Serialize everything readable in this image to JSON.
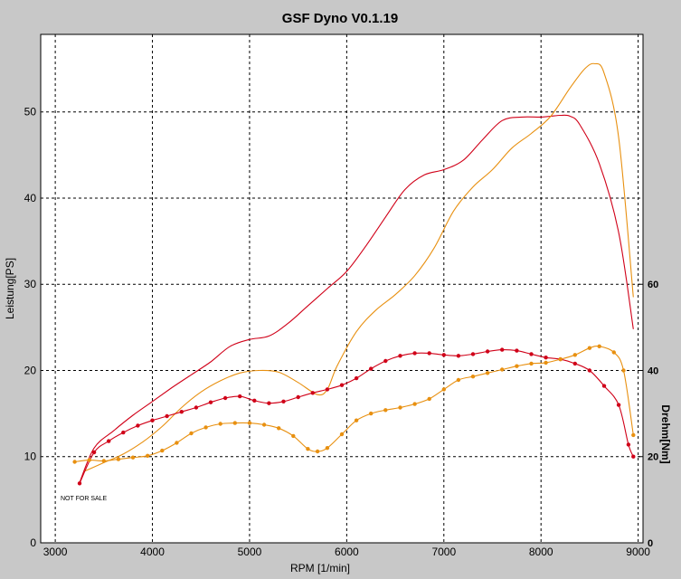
{
  "chart_data": {
    "type": "line",
    "title": "GSF Dyno V0.1.19",
    "xlabel": "RPM [1/min]",
    "ylabel": "Leistung[PS]",
    "y2label": "Drehm[Nm]",
    "xlim": [
      2850,
      9050
    ],
    "ylim": [
      0,
      59
    ],
    "y2lim": [
      0,
      118
    ],
    "x_ticks": [
      "3000",
      "4000",
      "5000",
      "6000",
      "7000",
      "8000",
      "9000"
    ],
    "y_ticks": [
      "0",
      "10",
      "20",
      "30",
      "40",
      "50"
    ],
    "y2_ticks": [
      "0",
      "20",
      "40",
      "60"
    ],
    "grid": true,
    "annotation": "NOT FOR SALE",
    "colors": {
      "red": "#d00018",
      "orange": "#e89010",
      "plot_bg": "#ffffff",
      "window_bg": "#c8c8c8"
    },
    "series": [
      {
        "axis": "left",
        "color": "red",
        "markers": false,
        "x": [
          3250,
          3400,
          3600,
          3800,
          4000,
          4200,
          4400,
          4600,
          4800,
          5000,
          5200,
          5400,
          5600,
          5800,
          6000,
          6200,
          6400,
          6600,
          6800,
          7000,
          7200,
          7400,
          7600,
          7800,
          8000,
          8100,
          8200,
          8300,
          8400,
          8600,
          8800,
          8950
        ],
        "y": [
          7,
          11,
          13,
          14.8,
          16.4,
          18,
          19.5,
          21,
          22.8,
          23.6,
          24,
          25.5,
          27.5,
          29.5,
          31.5,
          34.5,
          37.8,
          41,
          42.7,
          43.3,
          44.4,
          46.8,
          49,
          49.4,
          49.4,
          49.5,
          49.6,
          49.5,
          48.5,
          44,
          36,
          24.8
        ]
      },
      {
        "axis": "left",
        "color": "orange",
        "markers": false,
        "x": [
          3300,
          3500,
          3700,
          3900,
          4100,
          4300,
          4500,
          4700,
          4900,
          5100,
          5300,
          5500,
          5700,
          5800,
          5900,
          6100,
          6300,
          6500,
          6700,
          6900,
          7100,
          7300,
          7500,
          7700,
          7900,
          8100,
          8300,
          8450,
          8550,
          8650,
          8800,
          8950
        ],
        "y": [
          8.3,
          9.3,
          10.3,
          11.7,
          13.5,
          15.7,
          17.5,
          18.8,
          19.7,
          20,
          19.8,
          18.6,
          17.2,
          17.8,
          20.5,
          24.5,
          27,
          28.8,
          31,
          34.2,
          38.5,
          41.3,
          43.3,
          45.8,
          47.5,
          49.5,
          52.8,
          55,
          55.6,
          54.5,
          47,
          28.5
        ]
      },
      {
        "axis": "right",
        "color": "red",
        "markers": true,
        "x": [
          3250,
          3400,
          3550,
          3700,
          3850,
          4000,
          4150,
          4300,
          4450,
          4600,
          4750,
          4900,
          5050,
          5200,
          5350,
          5500,
          5650,
          5800,
          5950,
          6100,
          6250,
          6400,
          6550,
          6700,
          6850,
          7000,
          7150,
          7300,
          7450,
          7600,
          7750,
          7900,
          8050,
          8200,
          8350,
          8500,
          8650,
          8800,
          8900,
          8950
        ],
        "y": [
          13.8,
          21,
          23.6,
          25.6,
          27.2,
          28.4,
          29.4,
          30.4,
          31.4,
          32.6,
          33.6,
          34,
          33,
          32.4,
          32.8,
          33.8,
          34.8,
          35.6,
          36.6,
          38.2,
          40.4,
          42.2,
          43.4,
          44,
          44,
          43.6,
          43.4,
          43.8,
          44.4,
          44.8,
          44.6,
          43.8,
          43,
          42.6,
          41.6,
          40,
          36.4,
          32,
          22.8,
          20
        ]
      },
      {
        "axis": "right",
        "color": "orange",
        "markers": true,
        "x": [
          3200,
          3350,
          3500,
          3650,
          3800,
          3950,
          4100,
          4250,
          4400,
          4550,
          4700,
          4850,
          5000,
          5150,
          5300,
          5450,
          5600,
          5700,
          5800,
          5950,
          6100,
          6250,
          6400,
          6550,
          6700,
          6850,
          7000,
          7150,
          7300,
          7450,
          7600,
          7750,
          7900,
          8050,
          8200,
          8350,
          8500,
          8600,
          8750,
          8850,
          8950
        ],
        "y": [
          18.8,
          19.2,
          19,
          19.4,
          19.8,
          20.2,
          21.4,
          23.2,
          25.4,
          26.8,
          27.6,
          27.8,
          27.8,
          27.4,
          26.6,
          24.8,
          21.8,
          21.2,
          22,
          25.2,
          28.4,
          30,
          30.8,
          31.4,
          32.2,
          33.4,
          35.6,
          37.8,
          38.6,
          39.4,
          40.2,
          41,
          41.6,
          41.8,
          42.6,
          43.6,
          45.2,
          45.6,
          44.2,
          40,
          25
        ]
      }
    ]
  }
}
